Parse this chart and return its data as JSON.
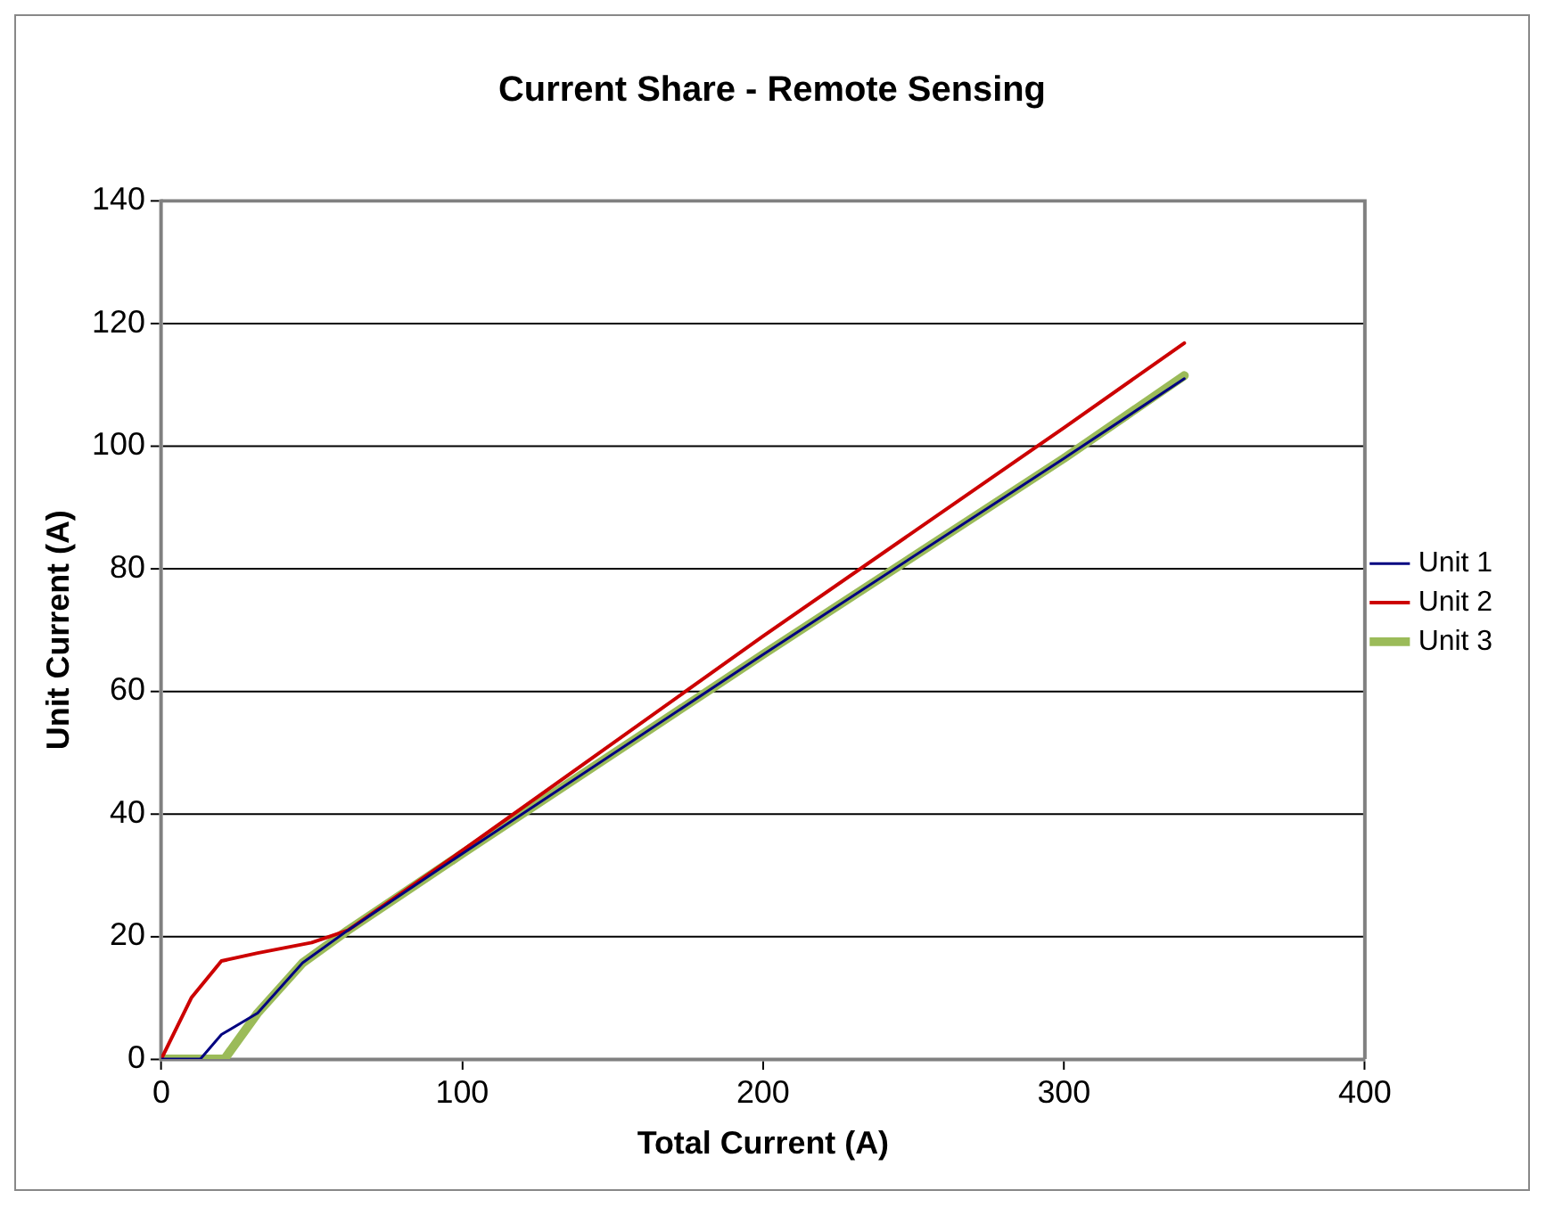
{
  "chart_data": {
    "type": "line",
    "title": "Current Share - Remote Sensing",
    "xlabel": "Total Current (A)",
    "ylabel": "Unit Current (A)",
    "xlim": [
      0,
      400
    ],
    "xticks": [
      0,
      100,
      200,
      300,
      400
    ],
    "ylim": [
      0,
      140
    ],
    "yticks": [
      0,
      20,
      40,
      60,
      80,
      100,
      120,
      140
    ],
    "grid": "y",
    "legend": "right",
    "marker": "none",
    "line_style": "solid",
    "series": [
      {
        "name": "Unit 1",
        "color": "#000080",
        "x": [
          0,
          13,
          20,
          32,
          47,
          62,
          100,
          200,
          300,
          340
        ],
        "values": [
          0,
          0,
          4,
          7.5,
          15.7,
          21,
          33.5,
          66,
          98,
          111
        ]
      },
      {
        "name": "Unit 2",
        "color": "#cc0000",
        "x": [
          0,
          10,
          20,
          32,
          50,
          62,
          100,
          200,
          300,
          340
        ],
        "values": [
          0,
          10,
          16,
          17.3,
          19,
          21,
          34,
          69,
          103,
          116.8
        ]
      },
      {
        "name": "Unit 3",
        "color": "#9bbb59",
        "x": [
          0,
          21,
          32,
          47,
          62,
          100,
          200,
          300,
          340
        ],
        "values": [
          0,
          0,
          7.5,
          15.7,
          21,
          33.5,
          66,
          98,
          111.5
        ]
      }
    ]
  }
}
